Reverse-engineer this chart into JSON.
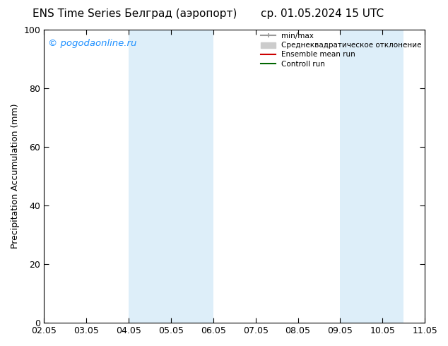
{
  "title_left": "ENS Time Series Белград (аэропорт)",
  "title_right": "ср. 01.05.2024 15 UTC",
  "ylabel": "Precipitation Accumulation (mm)",
  "ylim": [
    0,
    100
  ],
  "xlim": [
    0,
    9
  ],
  "xtick_labels": [
    "02.05",
    "03.05",
    "04.05",
    "05.05",
    "06.05",
    "07.05",
    "08.05",
    "09.05",
    "10.05",
    "11.05"
  ],
  "xtick_positions": [
    0,
    1,
    2,
    3,
    4,
    5,
    6,
    7,
    8,
    9
  ],
  "ytick_labels": [
    0,
    20,
    40,
    60,
    80,
    100
  ],
  "shade_regions": [
    {
      "xmin": 2,
      "xmax": 4,
      "color": "#ddeef9"
    },
    {
      "xmin": 7,
      "xmax": 8.5,
      "color": "#ddeef9"
    }
  ],
  "watermark_text": "© pogodaonline.ru",
  "watermark_color": "#1E90FF",
  "legend_entries": [
    {
      "label": "min/max",
      "color": "#999999",
      "lw": 1.5,
      "type": "line_with_cap"
    },
    {
      "label": "Среднеквадратическое отклонение",
      "color": "#cccccc",
      "lw": 8,
      "type": "thick"
    },
    {
      "label": "Ensemble mean run",
      "color": "#cc0000",
      "lw": 1.5,
      "type": "line"
    },
    {
      "label": "Controll run",
      "color": "#006600",
      "lw": 1.5,
      "type": "line"
    }
  ],
  "background_color": "#ffffff",
  "plot_bg_color": "#ffffff",
  "border_color": "#000000",
  "title_fontsize": 11,
  "tick_fontsize": 9,
  "ylabel_fontsize": 9
}
